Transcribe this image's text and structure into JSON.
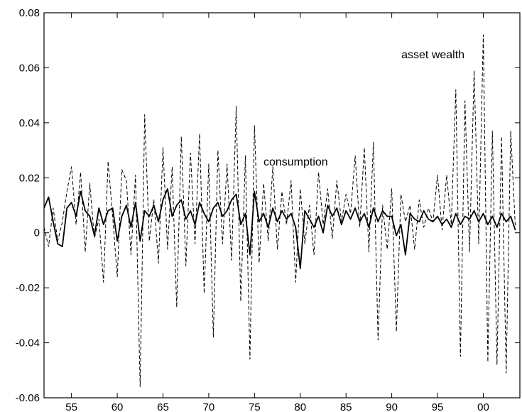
{
  "chart_data": {
    "type": "line",
    "title": "",
    "xlabel": "",
    "ylabel": "",
    "xlim": [
      1952,
      2004
    ],
    "ylim": [
      -0.06,
      0.08
    ],
    "xticks": [
      {
        "value": 1955,
        "label": "55"
      },
      {
        "value": 1960,
        "label": "60"
      },
      {
        "value": 1965,
        "label": "65"
      },
      {
        "value": 1970,
        "label": "70"
      },
      {
        "value": 1975,
        "label": "75"
      },
      {
        "value": 1980,
        "label": "80"
      },
      {
        "value": 1985,
        "label": "85"
      },
      {
        "value": 1990,
        "label": "90"
      },
      {
        "value": 1995,
        "label": "95"
      },
      {
        "value": 2000,
        "label": "00"
      }
    ],
    "yticks": [
      {
        "value": 0.08,
        "label": "0.08"
      },
      {
        "value": 0.06,
        "label": "0.06"
      },
      {
        "value": 0.04,
        "label": "0.04"
      },
      {
        "value": 0.02,
        "label": "0.02"
      },
      {
        "value": 0,
        "label": "0"
      },
      {
        "value": -0.02,
        "label": "-0.02"
      },
      {
        "value": -0.04,
        "label": "-0.04"
      },
      {
        "value": -0.06,
        "label": "-0.06"
      }
    ],
    "grid": false,
    "legend": "none",
    "annotations": [
      {
        "text": "asset wealth",
        "x": 1994.5,
        "y": 0.0635
      },
      {
        "text": "consumption",
        "x": 1979.5,
        "y": 0.0245
      }
    ],
    "series": [
      {
        "style": "dashed",
        "color": "#000000",
        "x": [
          1952.0,
          1952.5,
          1953.0,
          1953.5,
          1954.0,
          1954.5,
          1955.0,
          1955.5,
          1956.0,
          1956.5,
          1957.0,
          1957.5,
          1958.0,
          1958.5,
          1959.0,
          1959.5,
          1960.0,
          1960.5,
          1961.0,
          1961.5,
          1962.0,
          1962.5,
          1963.0,
          1963.5,
          1964.0,
          1964.5,
          1965.0,
          1965.5,
          1966.0,
          1966.5,
          1967.0,
          1967.5,
          1968.0,
          1968.5,
          1969.0,
          1969.5,
          1970.0,
          1970.5,
          1971.0,
          1971.5,
          1972.0,
          1972.5,
          1973.0,
          1973.5,
          1974.0,
          1974.5,
          1975.0,
          1975.5,
          1976.0,
          1976.5,
          1977.0,
          1977.5,
          1978.0,
          1978.5,
          1979.0,
          1979.5,
          1980.0,
          1980.5,
          1981.0,
          1981.5,
          1982.0,
          1982.5,
          1983.0,
          1983.5,
          1984.0,
          1984.5,
          1985.0,
          1985.5,
          1986.0,
          1986.5,
          1987.0,
          1987.5,
          1988.0,
          1988.5,
          1989.0,
          1989.5,
          1990.0,
          1990.5,
          1991.0,
          1991.5,
          1992.0,
          1992.5,
          1993.0,
          1993.5,
          1994.0,
          1994.5,
          1995.0,
          1995.5,
          1996.0,
          1996.5,
          1997.0,
          1997.5,
          1998.0,
          1998.5,
          1999.0,
          1999.5,
          2000.0,
          2000.5,
          2001.0,
          2001.5,
          2002.0,
          2002.5,
          2003.0,
          2003.5
        ],
        "y": [
          0.002,
          -0.005,
          0.009,
          -0.003,
          0.004,
          0.015,
          0.024,
          0.003,
          0.022,
          -0.007,
          0.018,
          -0.002,
          0.005,
          -0.018,
          0.026,
          0.006,
          -0.016,
          0.023,
          0.019,
          -0.008,
          0.021,
          -0.056,
          0.043,
          -0.003,
          0.012,
          -0.011,
          0.031,
          -0.006,
          0.024,
          -0.027,
          0.035,
          -0.012,
          0.029,
          -0.004,
          0.036,
          -0.022,
          0.025,
          -0.038,
          0.03,
          -0.004,
          0.025,
          -0.01,
          0.046,
          -0.025,
          0.028,
          -0.046,
          0.039,
          -0.011,
          0.018,
          -0.003,
          0.024,
          -0.006,
          0.015,
          0.003,
          0.019,
          -0.018,
          0.016,
          -0.004,
          0.01,
          -0.008,
          0.022,
          0.003,
          0.016,
          -0.002,
          0.019,
          0.004,
          0.014,
          0.007,
          0.028,
          0.002,
          0.031,
          -0.007,
          0.033,
          -0.039,
          0.01,
          -0.006,
          0.016,
          -0.036,
          0.014,
          0.004,
          0.01,
          -0.006,
          0.012,
          0.002,
          0.009,
          0.004,
          0.021,
          0.001,
          0.021,
          0.003,
          0.052,
          -0.045,
          0.048,
          -0.007,
          0.059,
          -0.004,
          0.072,
          -0.047,
          0.037,
          -0.048,
          0.035,
          -0.051,
          0.037,
          0.002
        ]
      },
      {
        "style": "solid",
        "color": "#000000",
        "x": [
          1952.0,
          1952.5,
          1953.0,
          1953.5,
          1954.0,
          1954.5,
          1955.0,
          1955.5,
          1956.0,
          1956.5,
          1957.0,
          1957.5,
          1958.0,
          1958.5,
          1959.0,
          1959.5,
          1960.0,
          1960.5,
          1961.0,
          1961.5,
          1962.0,
          1962.5,
          1963.0,
          1963.5,
          1964.0,
          1964.5,
          1965.0,
          1965.5,
          1966.0,
          1966.5,
          1967.0,
          1967.5,
          1968.0,
          1968.5,
          1969.0,
          1969.5,
          1970.0,
          1970.5,
          1971.0,
          1971.5,
          1972.0,
          1972.5,
          1973.0,
          1973.5,
          1974.0,
          1974.5,
          1975.0,
          1975.5,
          1976.0,
          1976.5,
          1977.0,
          1977.5,
          1978.0,
          1978.5,
          1979.0,
          1979.5,
          1980.0,
          1980.5,
          1981.0,
          1981.5,
          1982.0,
          1982.5,
          1983.0,
          1983.5,
          1984.0,
          1984.5,
          1985.0,
          1985.5,
          1986.0,
          1986.5,
          1987.0,
          1987.5,
          1988.0,
          1988.5,
          1989.0,
          1989.5,
          1990.0,
          1990.5,
          1991.0,
          1991.5,
          1992.0,
          1992.5,
          1993.0,
          1993.5,
          1994.0,
          1994.5,
          1995.0,
          1995.5,
          1996.0,
          1996.5,
          1997.0,
          1997.5,
          1998.0,
          1998.5,
          1999.0,
          1999.5,
          2000.0,
          2000.5,
          2001.0,
          2001.5,
          2002.0,
          2002.5,
          2003.0,
          2003.5
        ],
        "y": [
          0.009,
          0.013,
          0.004,
          -0.004,
          -0.005,
          0.009,
          0.011,
          0.006,
          0.015,
          0.008,
          0.006,
          -0.001,
          0.009,
          0.003,
          0.008,
          0.009,
          -0.003,
          0.006,
          0.01,
          0.002,
          0.011,
          -0.003,
          0.008,
          0.006,
          0.01,
          0.004,
          0.012,
          0.016,
          0.006,
          0.01,
          0.012,
          0.005,
          0.008,
          0.003,
          0.011,
          0.007,
          0.004,
          0.009,
          0.011,
          0.006,
          0.008,
          0.012,
          0.014,
          0.003,
          0.007,
          -0.008,
          0.015,
          0.004,
          0.007,
          0.002,
          0.009,
          0.004,
          0.008,
          0.005,
          0.007,
          0.002,
          -0.013,
          0.008,
          0.005,
          0.002,
          0.006,
          0.0,
          0.01,
          0.006,
          0.009,
          0.003,
          0.008,
          0.005,
          0.009,
          0.004,
          0.007,
          0.002,
          0.009,
          0.004,
          0.008,
          0.006,
          0.006,
          -0.001,
          0.003,
          -0.008,
          0.007,
          0.005,
          0.004,
          0.008,
          0.005,
          0.004,
          0.006,
          0.003,
          0.005,
          0.002,
          0.007,
          0.003,
          0.006,
          0.005,
          0.008,
          0.004,
          0.007,
          0.003,
          0.006,
          0.002,
          0.007,
          0.004,
          0.006,
          0.001
        ]
      }
    ]
  }
}
